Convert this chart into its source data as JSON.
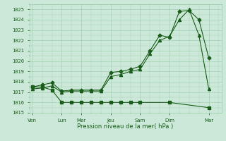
{
  "xlabel": "Pression niveau de la mer( hPa )",
  "ylim": [
    1015,
    1025.5
  ],
  "yticks": [
    1015,
    1016,
    1017,
    1018,
    1019,
    1020,
    1021,
    1022,
    1023,
    1024,
    1025
  ],
  "x_labels": [
    "Ven",
    "Lun",
    "Mer",
    "Jeu",
    "Sam",
    "Dim",
    "Mar"
  ],
  "x_positions": [
    0,
    3,
    5,
    8,
    11,
    14,
    18
  ],
  "xlim": [
    -0.3,
    19.3
  ],
  "background_color": "#cce8d8",
  "grid_color": "#99ccaa",
  "line_color": "#1a5c1a",
  "line1_x": [
    0,
    1,
    2,
    3,
    4,
    5,
    6,
    7,
    8,
    9,
    10,
    11,
    12,
    13,
    14,
    15,
    16,
    17,
    18
  ],
  "line1_y": [
    1017.5,
    1017.7,
    1017.9,
    1017.1,
    1017.2,
    1017.2,
    1017.2,
    1017.2,
    1018.9,
    1019.0,
    1019.2,
    1019.5,
    1021.0,
    1022.5,
    1022.3,
    1024.8,
    1024.9,
    1024.0,
    1020.3
  ],
  "line2_x": [
    0,
    1,
    2,
    3,
    4,
    5,
    6,
    7,
    8,
    9,
    10,
    11,
    12,
    13,
    14,
    15,
    16,
    17,
    18
  ],
  "line2_y": [
    1017.3,
    1017.4,
    1017.6,
    1017.0,
    1017.1,
    1017.1,
    1017.1,
    1017.1,
    1018.5,
    1018.7,
    1019.0,
    1019.2,
    1020.7,
    1022.0,
    1022.4,
    1024.0,
    1025.0,
    1022.5,
    1017.3
  ],
  "line3_x": [
    0,
    1,
    2,
    3,
    4,
    5,
    6,
    7,
    8,
    9,
    10,
    11,
    14,
    18
  ],
  "line3_y": [
    1017.5,
    1017.5,
    1017.2,
    1016.0,
    1016.0,
    1016.0,
    1016.0,
    1016.0,
    1016.0,
    1016.0,
    1016.0,
    1016.0,
    1016.0,
    1015.5
  ],
  "marker_size": 2.5,
  "linewidth": 0.8,
  "tick_fontsize": 5.0,
  "xlabel_fontsize": 6.0
}
